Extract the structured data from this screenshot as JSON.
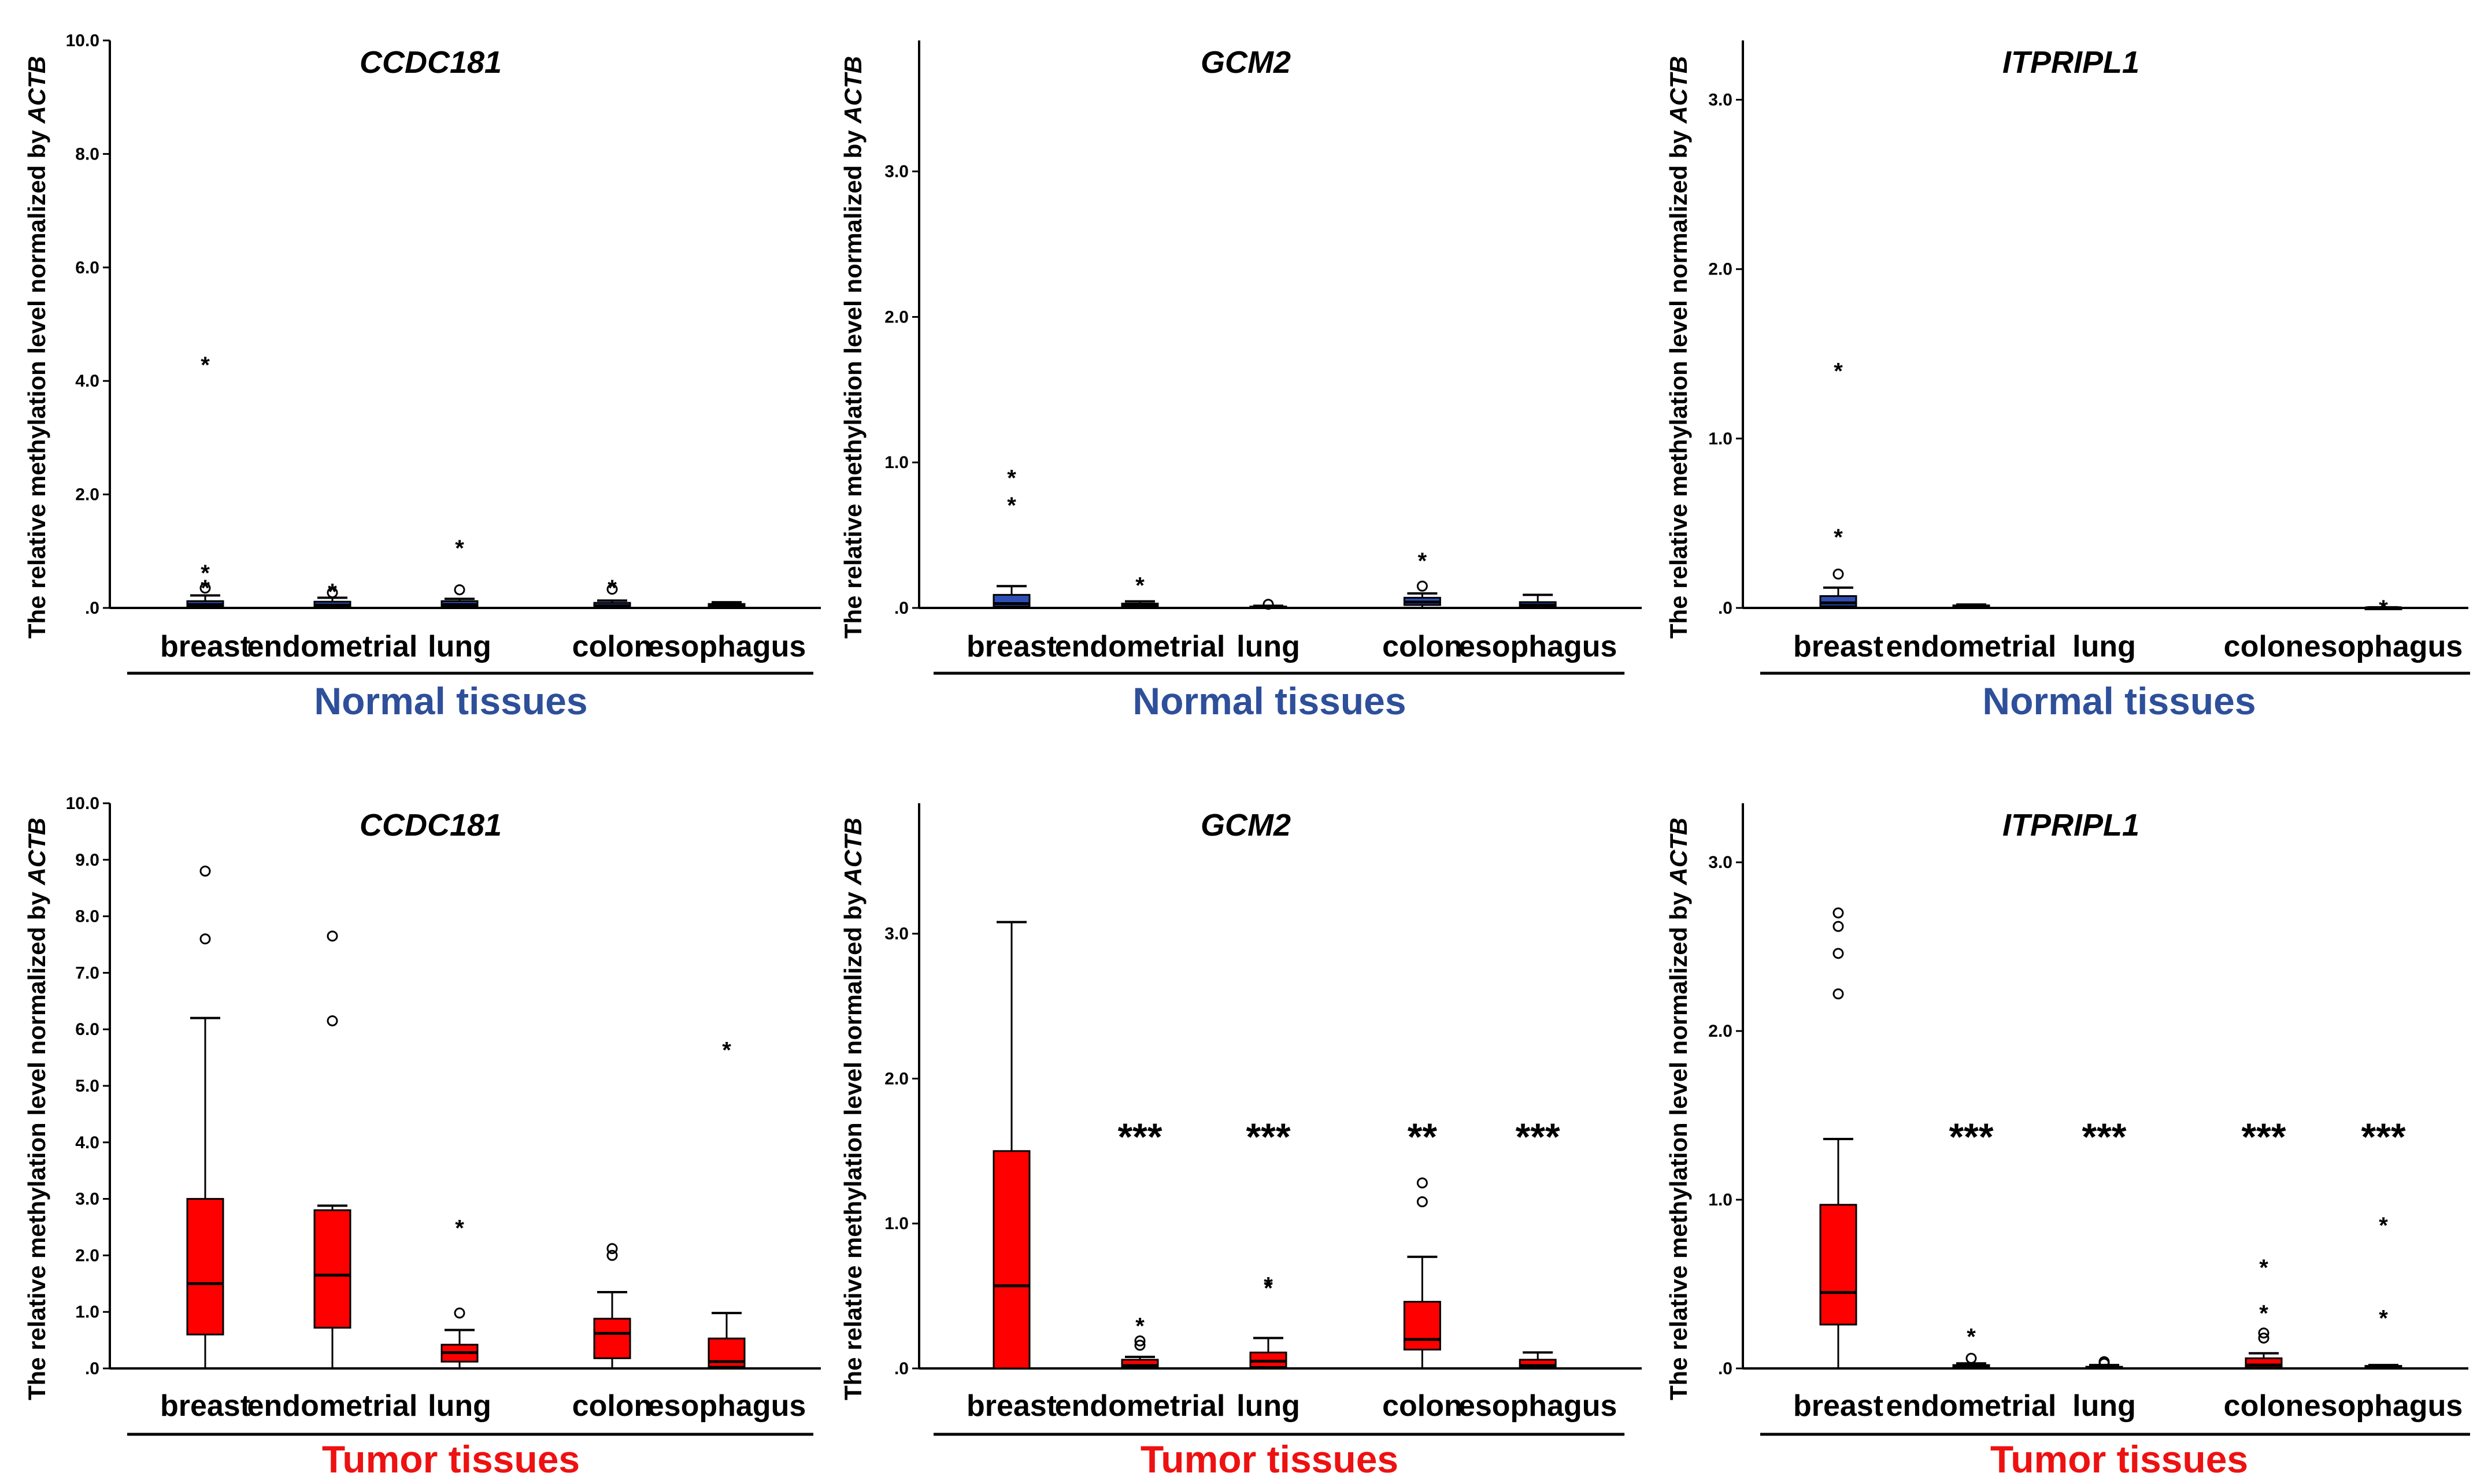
{
  "colors": {
    "normal_box": "#2f4fb5",
    "tumor_box": "#ff0000",
    "normal_label": "#2e4f9a",
    "tumor_label": "#ee1111"
  },
  "chart_data": [
    {
      "type": "box",
      "title": "CCDC181",
      "ylabel_prefix": "The relative methylation level normalized by ",
      "ylabel_gene": "ACTB",
      "group_label": "Normal tissues",
      "group": "normal",
      "ylim": [
        0,
        10
      ],
      "yticks": [
        "10.0",
        "8.0",
        "6.0",
        "4.0",
        "2.0",
        ".0"
      ],
      "categories": [
        "breast",
        "endometrial",
        "lung",
        "colon",
        "esophagus"
      ],
      "boxes": [
        {
          "min": 0,
          "q1": 0.02,
          "median": 0.06,
          "q3": 0.12,
          "max": 0.22,
          "outliers": [
            {
              "y": 0.35,
              "m": "o"
            },
            {
              "y": 0.42,
              "m": "*"
            },
            {
              "y": 0.68,
              "m": "*"
            },
            {
              "y": 4.35,
              "m": "*"
            }
          ]
        },
        {
          "min": 0,
          "q1": 0.02,
          "median": 0.05,
          "q3": 0.11,
          "max": 0.18,
          "outliers": [
            {
              "y": 0.27,
              "m": "o"
            },
            {
              "y": 0.35,
              "m": "*"
            }
          ]
        },
        {
          "min": 0,
          "q1": 0.02,
          "median": 0.06,
          "q3": 0.12,
          "max": 0.16,
          "outliers": [
            {
              "y": 0.32,
              "m": "o"
            },
            {
              "y": 1.12,
              "m": "*"
            }
          ]
        },
        {
          "min": 0,
          "q1": 0.01,
          "median": 0.04,
          "q3": 0.09,
          "max": 0.13,
          "outliers": [
            {
              "y": 0.33,
              "m": "o"
            },
            {
              "y": 0.42,
              "m": "*"
            }
          ]
        },
        {
          "min": 0,
          "q1": 0.01,
          "median": 0.04,
          "q3": 0.07,
          "max": 0.1,
          "outliers": []
        }
      ],
      "significance": []
    },
    {
      "type": "box",
      "title": "GCM2",
      "ylabel_prefix": "The relative methylation level normalized by ",
      "ylabel_gene": "ACTB",
      "group_label": "Normal tissues",
      "group": "normal",
      "ylim": [
        0,
        3.9
      ],
      "yticks": [
        "3.0",
        "2.0",
        "1.0",
        ".0"
      ],
      "categories": [
        "breast",
        "endometrial",
        "lung",
        "colon",
        "esophagus"
      ],
      "boxes": [
        {
          "min": 0,
          "q1": 0.01,
          "median": 0.03,
          "q3": 0.09,
          "max": 0.15,
          "outliers": [
            {
              "y": 0.73,
              "m": "*"
            },
            {
              "y": 0.92,
              "m": "*"
            }
          ]
        },
        {
          "min": 0,
          "q1": 0.005,
          "median": 0.015,
          "q3": 0.03,
          "max": 0.045,
          "outliers": [
            {
              "y": 0.18,
              "m": "*"
            }
          ]
        },
        {
          "min": 0,
          "q1": 0.002,
          "median": 0.005,
          "q3": 0.01,
          "max": 0.015,
          "outliers": [
            {
              "y": 0.025,
              "m": "o"
            }
          ]
        },
        {
          "min": 0,
          "q1": 0.02,
          "median": 0.04,
          "q3": 0.07,
          "max": 0.1,
          "outliers": [
            {
              "y": 0.15,
              "m": "o"
            },
            {
              "y": 0.35,
              "m": "*"
            }
          ]
        },
        {
          "min": 0,
          "q1": 0.005,
          "median": 0.02,
          "q3": 0.04,
          "max": 0.09,
          "outliers": []
        }
      ],
      "significance": []
    },
    {
      "type": "box",
      "title": "ITPRIPL1",
      "ylabel_prefix": "The relative methylation level normalized by ",
      "ylabel_gene": "ACTB",
      "group_label": "Normal tissues",
      "group": "normal",
      "ylim": [
        0,
        3.35
      ],
      "yticks": [
        "3.0",
        "2.0",
        "1.0",
        ".0"
      ],
      "categories": [
        "breast",
        "endometrial",
        "lung",
        "colon",
        "esophagus"
      ],
      "boxes": [
        {
          "min": 0,
          "q1": 0.01,
          "median": 0.03,
          "q3": 0.07,
          "max": 0.12,
          "outliers": [
            {
              "y": 0.2,
              "m": "o"
            },
            {
              "y": 0.44,
              "m": "*"
            },
            {
              "y": 1.42,
              "m": "*"
            }
          ]
        },
        {
          "min": 0,
          "q1": 0.003,
          "median": 0.008,
          "q3": 0.015,
          "max": 0.02,
          "outliers": []
        },
        null,
        null,
        {
          "min": 0,
          "q1": 0,
          "median": 0.001,
          "q3": 0.002,
          "max": 0.004,
          "outliers": [
            {
              "y": 0.02,
              "m": "*"
            }
          ]
        }
      ],
      "significance": []
    },
    {
      "type": "box",
      "title": "CCDC181",
      "ylabel_prefix": "The relative methylation level normalized by ",
      "ylabel_gene": "ACTB",
      "group_label": "Tumor tissues",
      "group": "tumor",
      "ylim": [
        0,
        10
      ],
      "yticks": [
        "10.0",
        "9.0",
        "8.0",
        "7.0",
        "6.0",
        "5.0",
        "4.0",
        "3.0",
        "2.0",
        "1.0",
        ".0"
      ],
      "categories": [
        "breast",
        "endometrial",
        "lung",
        "colon",
        "esophagus"
      ],
      "boxes": [
        {
          "min": 0,
          "q1": 0.6,
          "median": 1.5,
          "q3": 3.0,
          "max": 6.2,
          "outliers": [
            {
              "y": 7.6,
              "m": "o"
            },
            {
              "y": 8.8,
              "m": "o"
            }
          ]
        },
        {
          "min": 0,
          "q1": 0.72,
          "median": 1.65,
          "q3": 2.8,
          "max": 2.88,
          "outliers": [
            {
              "y": 6.15,
              "m": "o"
            },
            {
              "y": 7.65,
              "m": "o"
            }
          ]
        },
        {
          "min": 0,
          "q1": 0.12,
          "median": 0.28,
          "q3": 0.42,
          "max": 0.68,
          "outliers": [
            {
              "y": 0.98,
              "m": "o"
            },
            {
              "y": 2.55,
              "m": "*"
            }
          ]
        },
        {
          "min": 0,
          "q1": 0.18,
          "median": 0.62,
          "q3": 0.88,
          "max": 1.35,
          "outliers": [
            {
              "y": 2.0,
              "m": "o"
            },
            {
              "y": 2.12,
              "m": "o"
            }
          ]
        },
        {
          "min": 0,
          "q1": 0.03,
          "median": 0.12,
          "q3": 0.53,
          "max": 0.98,
          "outliers": [
            {
              "y": 5.7,
              "m": "*"
            }
          ]
        }
      ],
      "significance": []
    },
    {
      "type": "box",
      "title": "GCM2",
      "ylabel_prefix": "The relative methylation level normalized by ",
      "ylabel_gene": "ACTB",
      "group_label": "Tumor tissues",
      "group": "tumor",
      "ylim": [
        0,
        3.9
      ],
      "yticks": [
        "3.0",
        "2.0",
        "1.0",
        ".0"
      ],
      "categories": [
        "breast",
        "endometrial",
        "lung",
        "colon",
        "esophagus"
      ],
      "boxes": [
        {
          "min": 0,
          "q1": 0,
          "median": 0.57,
          "q3": 1.5,
          "max": 3.08,
          "outliers": []
        },
        {
          "min": 0,
          "q1": 0.01,
          "median": 0.02,
          "q3": 0.06,
          "max": 0.08,
          "outliers": [
            {
              "y": 0.16,
              "m": "o"
            },
            {
              "y": 0.19,
              "m": "o"
            },
            {
              "y": 0.32,
              "m": "*"
            }
          ]
        },
        {
          "min": 0,
          "q1": 0.01,
          "median": 0.05,
          "q3": 0.11,
          "max": 0.21,
          "outliers": [
            {
              "y": 0.58,
              "m": "*"
            },
            {
              "y": 0.6,
              "m": "*"
            }
          ]
        },
        {
          "min": 0,
          "q1": 0.13,
          "median": 0.2,
          "q3": 0.46,
          "max": 0.77,
          "outliers": [
            {
              "y": 1.15,
              "m": "o"
            },
            {
              "y": 1.28,
              "m": "o"
            }
          ]
        },
        {
          "min": 0,
          "q1": 0.005,
          "median": 0.02,
          "q3": 0.06,
          "max": 0.11,
          "outliers": []
        }
      ],
      "significance": [
        null,
        "***",
        "***",
        "**",
        "***"
      ]
    },
    {
      "type": "box",
      "title": "ITPRIPL1",
      "ylabel_prefix": "The relative methylation level normalized by ",
      "ylabel_gene": "ACTB",
      "group_label": "Tumor tissues",
      "group": "tumor",
      "ylim": [
        0,
        3.35
      ],
      "yticks": [
        "3.0",
        "2.0",
        "1.0",
        ".0"
      ],
      "categories": [
        "breast",
        "endometrial",
        "lung",
        "colon",
        "esophagus"
      ],
      "boxes": [
        {
          "min": 0,
          "q1": 0.26,
          "median": 0.45,
          "q3": 0.97,
          "max": 1.36,
          "outliers": [
            {
              "y": 2.22,
              "m": "o"
            },
            {
              "y": 2.46,
              "m": "o"
            },
            {
              "y": 2.62,
              "m": "o"
            },
            {
              "y": 2.7,
              "m": "o"
            }
          ]
        },
        {
          "min": 0,
          "q1": 0.003,
          "median": 0.008,
          "q3": 0.02,
          "max": 0.03,
          "outliers": [
            {
              "y": 0.06,
              "m": "o"
            },
            {
              "y": 0.21,
              "m": "*"
            }
          ]
        },
        {
          "min": 0,
          "q1": 0.002,
          "median": 0.005,
          "q3": 0.01,
          "max": 0.02,
          "outliers": [
            {
              "y": 0.03,
              "m": "o"
            },
            {
              "y": 0.04,
              "m": "o"
            }
          ]
        },
        {
          "min": 0,
          "q1": 0.005,
          "median": 0.02,
          "q3": 0.06,
          "max": 0.09,
          "outliers": [
            {
              "y": 0.18,
              "m": "o"
            },
            {
              "y": 0.21,
              "m": "o"
            },
            {
              "y": 0.35,
              "m": "*"
            },
            {
              "y": 0.62,
              "m": "*"
            }
          ]
        },
        {
          "min": 0,
          "q1": 0.002,
          "median": 0.006,
          "q3": 0.015,
          "max": 0.02,
          "outliers": [
            {
              "y": 0.32,
              "m": "*"
            },
            {
              "y": 0.87,
              "m": "*"
            }
          ]
        }
      ],
      "significance": [
        null,
        "***",
        "***",
        "***",
        "***"
      ]
    }
  ]
}
